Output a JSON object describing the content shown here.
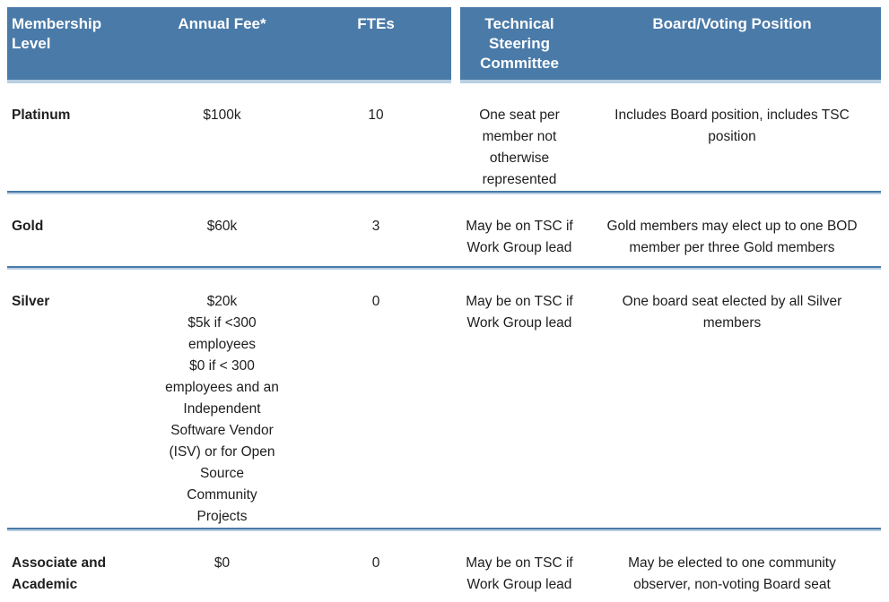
{
  "table": {
    "header": [
      "Membership\nLevel",
      "Annual Fee*",
      "FTEs",
      "Technical\nSteering\nCommittee",
      "Board/Voting Position"
    ],
    "rows": [
      {
        "level": "Platinum",
        "fee": "$100k",
        "ftes": "10",
        "tsc": "One seat per\nmember not\notherwise\nrepresented",
        "board": "Includes Board position, includes TSC\nposition"
      },
      {
        "level": "Gold",
        "fee": "$60k",
        "ftes": "3",
        "tsc": "May be on TSC if\nWork Group lead",
        "board": "Gold members may elect up to one BOD\nmember per three Gold members"
      },
      {
        "level": "Silver",
        "fee": "$20k\n$5k if <300\nemployees\n$0 if < 300\nemployees and an\nIndependent\nSoftware Vendor\n(ISV) or for Open\nSource\nCommunity\nProjects",
        "ftes": "0",
        "tsc": "May be on TSC if\nWork Group lead",
        "board": "One board seat elected by all Silver\nmembers"
      },
      {
        "level": "Associate and\nAcademic",
        "fee": "$0",
        "ftes": "0",
        "tsc": "May be on TSC if\nWork Group lead",
        "board": "May be elected to one community\nobserver, non-voting Board seat"
      }
    ],
    "colors": {
      "header_bg": "#4a7aa8",
      "header_text": "#ffffff",
      "divider_dark": "#4a7aa8",
      "divider_light": "#b9cfe2",
      "body_text": "#1e1e1e"
    }
  }
}
